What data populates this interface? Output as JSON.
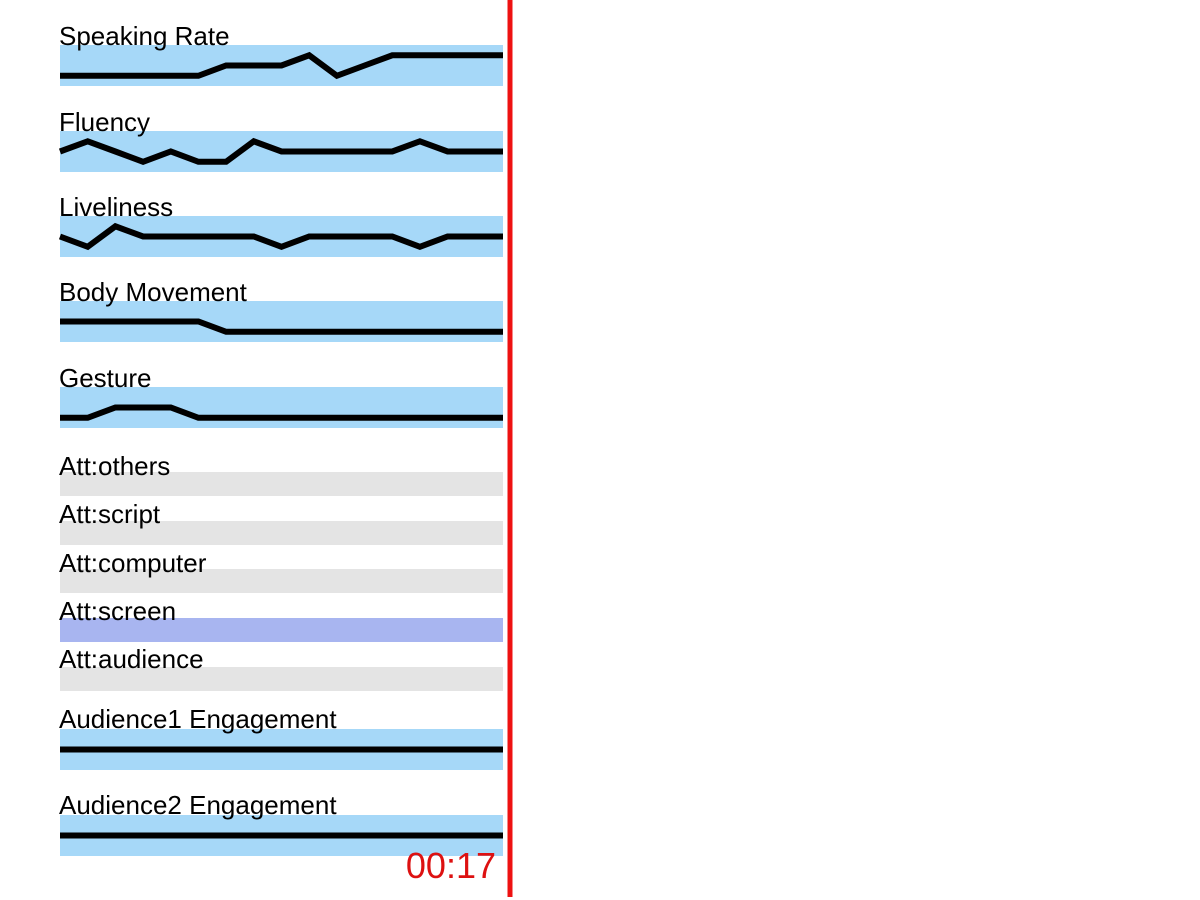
{
  "colors": {
    "band": "#a6d8f8",
    "attention_inactive": "#e4e4e4",
    "attention_active": "#a8b5f0",
    "line": "#000000",
    "playhead": "#ee1111",
    "timecode": "#dd1111"
  },
  "playhead_time": "00:17",
  "chart_data": {
    "type": "line",
    "x": [
      0,
      1,
      2,
      3,
      4,
      5,
      6,
      7,
      8,
      9,
      10,
      11,
      12,
      13,
      14,
      15,
      16
    ],
    "xlim": [
      0,
      16
    ],
    "ylim": [
      0,
      1
    ],
    "tracks": [
      {
        "name": "Speaking Rate",
        "kind": "series",
        "values": [
          0.25,
          0.25,
          0.25,
          0.25,
          0.25,
          0.25,
          0.5,
          0.5,
          0.5,
          0.75,
          0.25,
          0.5,
          0.75,
          0.75,
          0.75,
          0.75,
          0.75
        ]
      },
      {
        "name": "Fluency",
        "kind": "series",
        "values": [
          0.5,
          0.75,
          0.5,
          0.25,
          0.5,
          0.25,
          0.25,
          0.75,
          0.5,
          0.5,
          0.5,
          0.5,
          0.5,
          0.75,
          0.5,
          0.5,
          0.5
        ]
      },
      {
        "name": "Liveliness",
        "kind": "series",
        "values": [
          0.5,
          0.25,
          0.75,
          0.5,
          0.5,
          0.5,
          0.5,
          0.5,
          0.25,
          0.5,
          0.5,
          0.5,
          0.5,
          0.25,
          0.5,
          0.5,
          0.5
        ]
      },
      {
        "name": "Body Movement",
        "kind": "series",
        "values": [
          0.5,
          0.5,
          0.5,
          0.5,
          0.5,
          0.5,
          0.25,
          0.25,
          0.25,
          0.25,
          0.25,
          0.25,
          0.25,
          0.25,
          0.25,
          0.25,
          0.25
        ]
      },
      {
        "name": "Gesture",
        "kind": "series",
        "values": [
          0.25,
          0.25,
          0.5,
          0.5,
          0.5,
          0.25,
          0.25,
          0.25,
          0.25,
          0.25,
          0.25,
          0.25,
          0.25,
          0.25,
          0.25,
          0.25,
          0.25
        ]
      },
      {
        "name": "Att:others",
        "kind": "attention",
        "active": false
      },
      {
        "name": "Att:script",
        "kind": "attention",
        "active": false
      },
      {
        "name": "Att:computer",
        "kind": "attention",
        "active": false
      },
      {
        "name": "Att:screen",
        "kind": "attention",
        "active": true
      },
      {
        "name": "Att:audience",
        "kind": "attention",
        "active": false
      },
      {
        "name": "Audience1 Engagement",
        "kind": "series",
        "values": [
          0.5,
          0.5,
          0.5,
          0.5,
          0.5,
          0.5,
          0.5,
          0.5,
          0.5,
          0.5,
          0.5,
          0.5,
          0.5,
          0.5,
          0.5,
          0.5,
          0.5
        ]
      },
      {
        "name": "Audience2 Engagement",
        "kind": "series",
        "values": [
          0.5,
          0.5,
          0.5,
          0.5,
          0.5,
          0.5,
          0.5,
          0.5,
          0.5,
          0.5,
          0.5,
          0.5,
          0.5,
          0.5,
          0.5,
          0.5,
          0.5
        ]
      }
    ]
  }
}
